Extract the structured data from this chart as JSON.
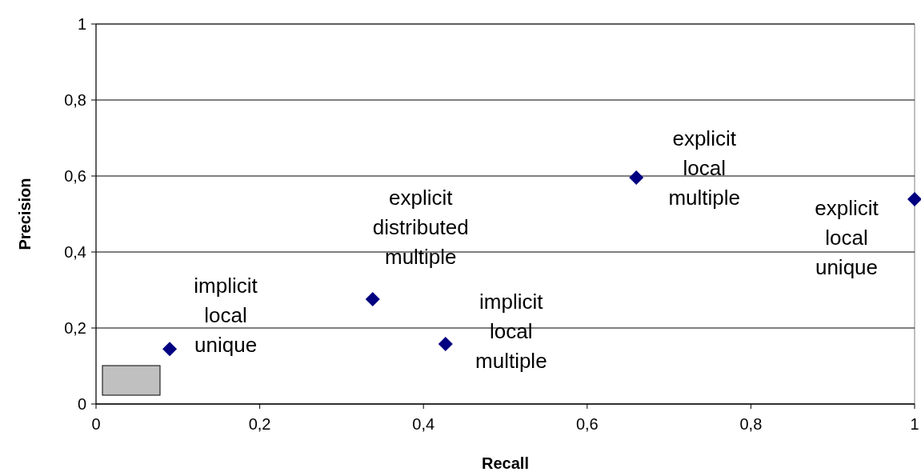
{
  "chart_data": {
    "type": "scatter",
    "xlabel": "Recall",
    "ylabel": "Precision",
    "x": [
      0.09,
      0.338,
      0.427,
      0.66,
      1.0
    ],
    "values": [
      0.145,
      0.276,
      0.158,
      0.596,
      0.539
    ],
    "color": "#000080",
    "marker": "diamond",
    "grid": "y",
    "xlim": [
      0,
      1
    ],
    "ylim": [
      0,
      1
    ],
    "xticks": [
      0,
      {
        "value": 0.2,
        "label": "0,2"
      },
      {
        "value": 0.4,
        "label": "0,4"
      },
      {
        "value": 0.6,
        "label": "0,6"
      },
      {
        "value": 0.8,
        "label": "0,8"
      },
      1
    ],
    "yticks": [
      0,
      {
        "value": 0.2,
        "label": "0,2"
      },
      {
        "value": 0.4,
        "label": "0,4"
      },
      {
        "value": 0.6,
        "label": "0,6"
      },
      {
        "value": 0.8,
        "label": "0,8"
      },
      1
    ],
    "annotations": [
      {
        "text": "implicit\nlocal\nunique",
        "x": 0.09,
        "y": 0.145
      },
      {
        "text": "explicit\ndistributed\nmultiple",
        "x": 0.338,
        "y": 0.276
      },
      {
        "text": "implicit\nlocal\nmultiple",
        "x": 0.427,
        "y": 0.158
      },
      {
        "text": "explicit\nlocal\nmultiple",
        "x": 0.66,
        "y": 0.596
      },
      {
        "text": "explicit\nlocal\nunique",
        "x": 1.0,
        "y": 0.539
      }
    ]
  }
}
